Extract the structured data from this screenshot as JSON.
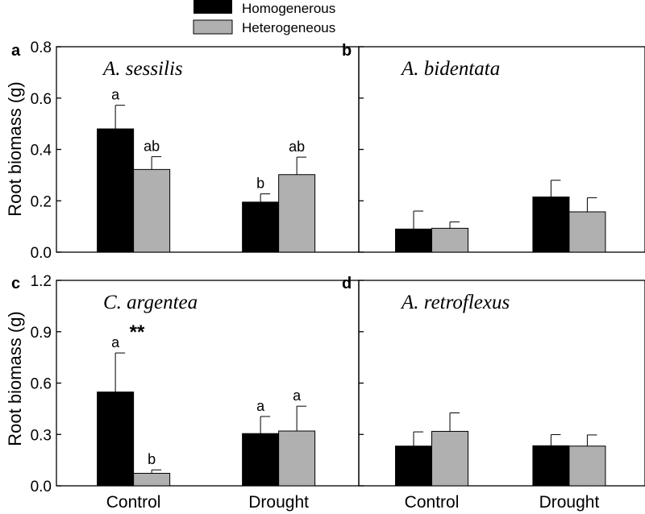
{
  "chart_data": {
    "type": "bar",
    "legend": {
      "placement": "top-center",
      "entries": [
        {
          "name": "Homogenerous",
          "color": "#000000"
        },
        {
          "name": "Heterogeneous",
          "color": "#b0b0b0"
        }
      ]
    },
    "ylabel": "Root biomass (g)",
    "categories": [
      "Control",
      "Drought"
    ],
    "panels": [
      {
        "letter": "a",
        "species": "A. sessilis",
        "ylim": [
          0,
          0.8
        ],
        "yticks": [
          "0.0",
          "0.2",
          "0.4",
          "0.6",
          "0.8"
        ],
        "series": [
          {
            "name": "Homogenerous",
            "values": [
              0.48,
              0.195
            ],
            "errors": [
              0.092,
              0.032
            ],
            "labels": [
              "a",
              "b"
            ]
          },
          {
            "name": "Heterogeneous",
            "values": [
              0.322,
              0.302
            ],
            "errors": [
              0.05,
              0.068
            ],
            "labels": [
              "ab",
              "ab"
            ]
          }
        ],
        "annotation": ""
      },
      {
        "letter": "b",
        "species": "A. bidentata",
        "ylim": [
          0,
          0.8
        ],
        "yticks": [],
        "series": [
          {
            "name": "Homogenerous",
            "values": [
              0.09,
              0.215
            ],
            "errors": [
              0.07,
              0.065
            ],
            "labels": [
              "",
              ""
            ]
          },
          {
            "name": "Heterogeneous",
            "values": [
              0.093,
              0.157
            ],
            "errors": [
              0.025,
              0.055
            ],
            "labels": [
              "",
              ""
            ]
          }
        ],
        "annotation": ""
      },
      {
        "letter": "c",
        "species": "C. argentea",
        "ylim": [
          0,
          1.2
        ],
        "yticks": [
          "0.0",
          "0.3",
          "0.6",
          "0.9",
          "1.2"
        ],
        "series": [
          {
            "name": "Homogenerous",
            "values": [
              0.548,
              0.305
            ],
            "errors": [
              0.228,
              0.1
            ],
            "labels": [
              "a",
              "a"
            ]
          },
          {
            "name": "Heterogeneous",
            "values": [
              0.073,
              0.32
            ],
            "errors": [
              0.02,
              0.145
            ],
            "labels": [
              "b",
              "a"
            ]
          }
        ],
        "annotation": "**"
      },
      {
        "letter": "d",
        "species": "A. retroflexus",
        "ylim": [
          0,
          1.2
        ],
        "yticks": [],
        "series": [
          {
            "name": "Homogenerous",
            "values": [
              0.232,
              0.234
            ],
            "errors": [
              0.083,
              0.065
            ],
            "labels": [
              "",
              ""
            ]
          },
          {
            "name": "Heterogeneous",
            "values": [
              0.318,
              0.232
            ],
            "errors": [
              0.108,
              0.065
            ],
            "labels": [
              "",
              ""
            ]
          }
        ],
        "annotation": ""
      }
    ]
  }
}
